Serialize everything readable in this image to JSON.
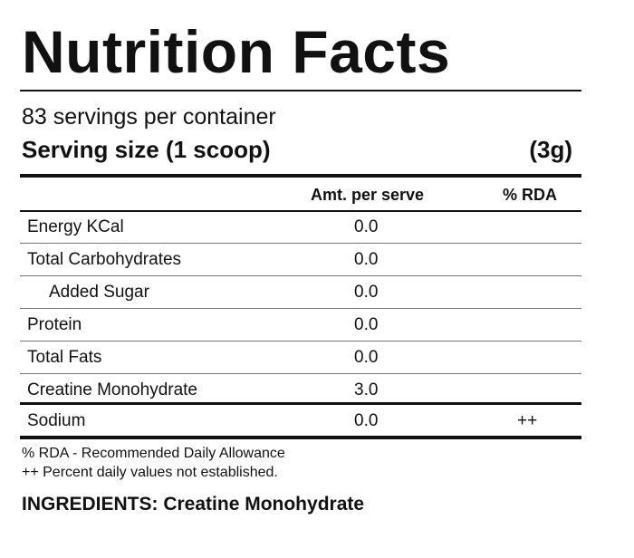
{
  "title": "Nutrition Facts",
  "servings_per_container": "83 servings per container",
  "serving_size": {
    "label": "Serving size (1 scoop)",
    "value": "(3g)"
  },
  "table": {
    "headers": {
      "amount": "Amt. per serve",
      "rda": "% RDA"
    },
    "rows": [
      {
        "name": "Energy KCal",
        "amount": "0.0",
        "rda": ""
      },
      {
        "name": "Total Carbohydrates",
        "amount": "0.0",
        "rda": ""
      },
      {
        "name": "Added Sugar",
        "amount": "0.0",
        "rda": ""
      },
      {
        "name": "Protein",
        "amount": "0.0",
        "rda": ""
      },
      {
        "name": "Total Fats",
        "amount": "0.0",
        "rda": ""
      },
      {
        "name": "Creatine Monohydrate",
        "amount": "3.0",
        "rda": ""
      },
      {
        "name": "Sodium",
        "amount": "0.0",
        "rda": "++"
      }
    ]
  },
  "footnotes": [
    "% RDA - Recommended Daily Allowance",
    "++ Percent daily values not established."
  ],
  "ingredients": "INGREDIENTS: Creatine Monohydrate"
}
